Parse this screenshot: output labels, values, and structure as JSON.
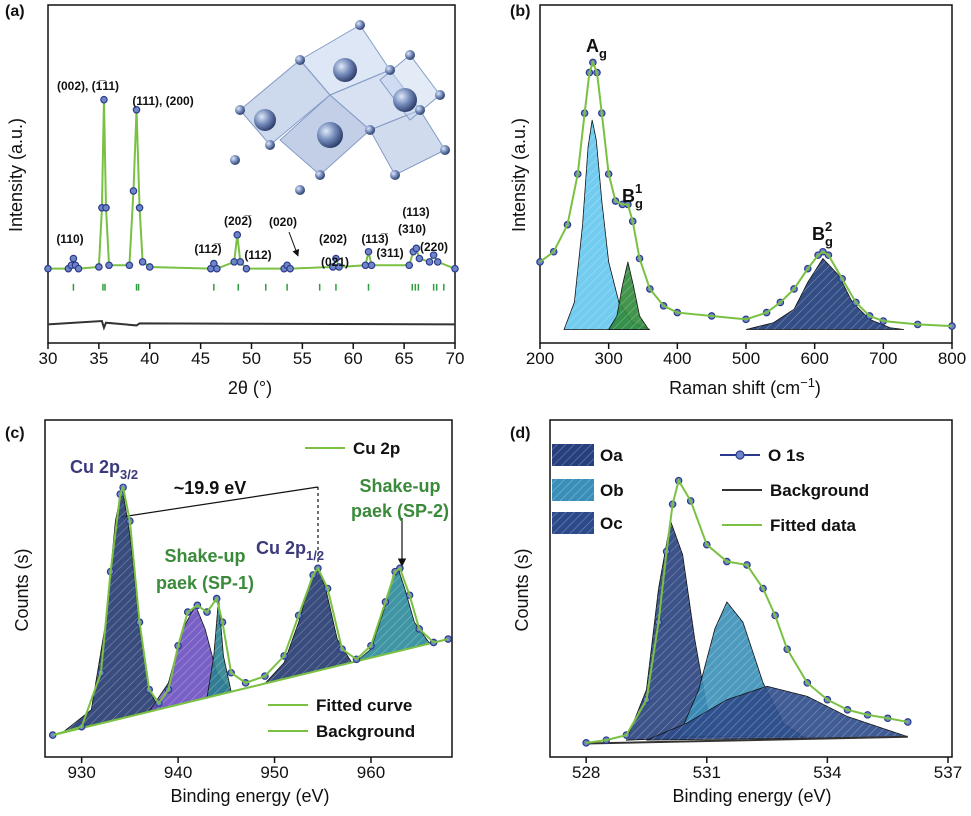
{
  "chart_data": [
    {
      "type": "line",
      "panel_label": "(a)",
      "x_label": "2θ (°)",
      "y_label": "Intensity (a.u.)",
      "xlim": [
        30,
        70
      ],
      "ylim": [
        0,
        100
      ],
      "xticks": [
        30,
        35,
        40,
        45,
        50,
        55,
        60,
        65,
        70
      ],
      "series": [
        {
          "color": "#7ac143",
          "style": "line",
          "x": [
            30,
            32,
            32.3,
            32.5,
            32.7,
            33,
            35,
            35.3,
            35.5,
            35.7,
            36,
            38,
            38.4,
            38.7,
            39,
            39.3,
            40,
            46,
            46.3,
            46.6,
            48.3,
            48.6,
            48.9,
            49.5,
            53.2,
            53.5,
            53.8,
            58,
            58.3,
            58.6,
            61.2,
            61.5,
            61.8,
            65.5,
            65.9,
            66.2,
            66.5,
            67.5,
            67.9,
            68.3,
            70
          ],
          "values": [
            22,
            22,
            23,
            25,
            23,
            22,
            22.5,
            40,
            72,
            40,
            23,
            23,
            45,
            69,
            40,
            24,
            22.5,
            22,
            23.5,
            22,
            24,
            32,
            24,
            22,
            22,
            23,
            22,
            22.5,
            25,
            22.5,
            23,
            27,
            23,
            23,
            27,
            28,
            25,
            24,
            26,
            24,
            22
          ]
        },
        {
          "color": "#2b3a8c",
          "style": "dots",
          "x": [
            30,
            32,
            32.3,
            32.5,
            32.7,
            33,
            35,
            35.3,
            35.5,
            35.7,
            36,
            38,
            38.4,
            38.7,
            39,
            39.3,
            40,
            46,
            46.3,
            46.6,
            48.3,
            48.6,
            48.9,
            49.5,
            53.2,
            53.5,
            53.8,
            58,
            58.3,
            58.6,
            61.2,
            61.5,
            61.8,
            65.5,
            65.9,
            66.2,
            66.5,
            67.5,
            67.9,
            68.3,
            70
          ],
          "values": [
            22,
            22,
            23,
            25,
            23,
            22,
            22.5,
            40,
            72,
            40,
            23,
            23,
            45,
            69,
            40,
            24,
            22.5,
            22,
            23.5,
            22,
            24,
            32,
            24,
            22,
            22,
            23,
            22,
            22.5,
            25,
            22.5,
            23,
            27,
            23,
            23,
            27,
            28,
            25,
            24,
            26,
            24,
            22
          ]
        },
        {
          "color": "#333333",
          "style": "line",
          "x": [
            30,
            35.3,
            35.5,
            35.7,
            38.7,
            39,
            70
          ],
          "values": [
            5.5,
            6.5,
            4.5,
            6,
            5.2,
            5.8,
            5.5
          ]
        }
      ],
      "reflections": {
        "color": "#2e9e3e",
        "x": [
          32.5,
          35.4,
          35.6,
          38.7,
          38.9,
          46.3,
          48.7,
          51.4,
          53.5,
          56.7,
          58.3,
          61.5,
          65.8,
          66.1,
          66.4,
          67.9,
          68.2,
          68.9
        ]
      },
      "annotations": [
        "(110)",
        "(002), (1̅11)",
        "(111), (200)",
        "(112̅)",
        "(202̅)",
        "(020)",
        "(112)",
        "(021)",
        "(202)",
        "(113̅)",
        "(311)",
        "(310)",
        "(113)",
        "(220)"
      ]
    },
    {
      "type": "area",
      "panel_label": "(b)",
      "x_label": {
        "text": "Raman shift (cm",
        "sup": "−1",
        "tail": ")"
      },
      "y_label": "Intensity (a.u.)",
      "xlim": [
        200,
        800
      ],
      "ylim": [
        0,
        100
      ],
      "xticks": [
        200,
        300,
        400,
        500,
        600,
        700,
        800
      ],
      "series": [
        {
          "color": "#62c6ee",
          "style": "fill",
          "x": [
            235,
            250,
            262,
            270,
            276,
            282,
            290,
            300,
            315,
            335,
            360
          ],
          "values": [
            4,
            12,
            35,
            58,
            66,
            60,
            42,
            24,
            12,
            6,
            4
          ]
        },
        {
          "color": "#2f8a3a",
          "style": "fill",
          "x": [
            300,
            312,
            320,
            328,
            336,
            345,
            358
          ],
          "values": [
            4,
            8,
            17,
            24,
            17,
            8,
            4
          ]
        },
        {
          "color": "#1d3a78",
          "style": "fill",
          "x": [
            500,
            540,
            570,
            590,
            612,
            635,
            655,
            680,
            710,
            730
          ],
          "values": [
            4,
            6,
            10,
            18,
            25,
            20,
            12,
            7,
            4.5,
            4
          ]
        },
        {
          "color": "#2b3a8c",
          "style": "dots",
          "x": [
            200,
            220,
            240,
            255,
            265,
            272,
            277,
            283,
            290,
            300,
            310,
            320,
            328,
            335,
            345,
            360,
            380,
            400,
            450,
            500,
            530,
            550,
            570,
            590,
            605,
            612,
            620,
            640,
            660,
            680,
            700,
            750,
            800
          ],
          "values": [
            24,
            27,
            35,
            50,
            68,
            80,
            83,
            80,
            68,
            50,
            42,
            41,
            41,
            36,
            25,
            16,
            11,
            9,
            8,
            7,
            9,
            12,
            16,
            22,
            26,
            27,
            26,
            19,
            12,
            8,
            6.5,
            5.5,
            5
          ]
        },
        {
          "color": "#7ac143",
          "style": "line",
          "x": [
            200,
            220,
            240,
            255,
            265,
            272,
            277,
            283,
            290,
            300,
            310,
            320,
            328,
            335,
            345,
            360,
            380,
            400,
            450,
            500,
            530,
            550,
            570,
            590,
            605,
            612,
            620,
            640,
            660,
            680,
            700,
            750,
            800
          ],
          "values": [
            24,
            27,
            35,
            50,
            68,
            80,
            83,
            80,
            68,
            50,
            42,
            41,
            41,
            36,
            25,
            16,
            11,
            9,
            8,
            7,
            9,
            12,
            16,
            22,
            26,
            27,
            26,
            19,
            12,
            8,
            6.5,
            5.5,
            5
          ]
        }
      ],
      "annotations": [
        {
          "text": "A",
          "sub": "g"
        },
        {
          "text": "B",
          "sub": "g",
          "sup": "1"
        },
        {
          "text": "B",
          "sub": "g",
          "sup": "2"
        }
      ]
    },
    {
      "type": "area",
      "panel_label": "(c)",
      "x_label": "Binding energy (eV)",
      "y_label": "Counts (s)",
      "xlim": [
        926.2,
        968.4
      ],
      "ylim": [
        0,
        100
      ],
      "xticks": [
        930,
        940,
        950,
        960
      ],
      "series": [
        {
          "color": "#22386f",
          "style": "fill",
          "x": [
            928,
            931,
            932.5,
            933.5,
            934.2,
            935,
            936,
            937,
            938
          ],
          "values": [
            7.2,
            14,
            40,
            70,
            80,
            66,
            38,
            20,
            14.4
          ]
        },
        {
          "color": "#6a4fc0",
          "style": "fill",
          "x": [
            937,
            939,
            940.5,
            941.8,
            942.8,
            944,
            945.5
          ],
          "values": [
            13.5,
            22,
            38,
            45,
            38,
            25,
            19.4
          ]
        },
        {
          "color": "#2a7f8f",
          "style": "fill",
          "x": [
            943,
            943.7,
            944.2,
            944.7,
            945.5
          ],
          "values": [
            17.6,
            30,
            47,
            30,
            19.4
          ]
        },
        {
          "color": "#22386f",
          "style": "fill",
          "x": [
            949,
            951,
            952.5,
            953.8,
            954.5,
            955.3,
            956.5,
            958,
            959
          ],
          "values": [
            21.8,
            28,
            40,
            53,
            56,
            50,
            35,
            28,
            28.7
          ]
        },
        {
          "color": "#2a8a9a",
          "style": "fill",
          "x": [
            958.5,
            960,
            961.5,
            962.3,
            962.8,
            963.5,
            964.5,
            966,
            967
          ],
          "values": [
            28.4,
            32,
            45,
            54,
            56,
            50,
            40,
            34,
            34.3
          ]
        },
        {
          "name": "Background",
          "color": "#7ac143",
          "style": "line",
          "x": [
            927,
            968
          ],
          "values": [
            6.5,
            35
          ]
        },
        {
          "name": "Cu 2p",
          "color": "#7ac143",
          "style": "dots",
          "x": [
            927,
            930,
            932,
            933,
            934,
            934.3,
            935,
            936,
            937,
            938,
            939,
            940,
            941,
            942,
            943,
            944,
            944.6,
            945.5,
            947,
            949,
            951,
            952.5,
            954,
            954.5,
            955.5,
            957,
            958.5,
            960,
            961.5,
            962.5,
            963,
            964,
            965,
            966.5,
            968
          ],
          "values": [
            6.5,
            9,
            25,
            55,
            78,
            80,
            70,
            40,
            20,
            16,
            20,
            33,
            43,
            45,
            43,
            47,
            40,
            25,
            22,
            24,
            30,
            42,
            54,
            56,
            50,
            32,
            29,
            33,
            46,
            55,
            56,
            48,
            38,
            34,
            35
          ]
        },
        {
          "name": "Fitted curve",
          "color": "#7ac143",
          "style": "line",
          "x": [
            927,
            930,
            932,
            933,
            934,
            934.3,
            935,
            936,
            937,
            938,
            939,
            940,
            941,
            942,
            943,
            944,
            944.6,
            945.5,
            947,
            949,
            951,
            952.5,
            954,
            954.5,
            955.5,
            957,
            958.5,
            960,
            961.5,
            962.5,
            963,
            964,
            965,
            966.5,
            968
          ],
          "values": [
            6.5,
            9,
            25,
            55,
            78,
            80,
            70,
            40,
            20,
            16,
            20,
            33,
            43,
            45,
            43,
            47,
            40,
            25,
            22,
            24,
            30,
            42,
            54,
            56,
            50,
            32,
            29,
            33,
            46,
            55,
            56,
            48,
            38,
            34,
            35
          ]
        }
      ],
      "annotations": [
        {
          "text": "Cu 2p",
          "sub": "3/2"
        },
        "~19.9 eV",
        "Shake-up",
        "paek (SP-1)",
        {
          "text": "Cu 2p",
          "sub": "1/2"
        },
        "Shake-up",
        "paek (SP-2)"
      ]
    },
    {
      "type": "area",
      "panel_label": "(d)",
      "x_label": "Binding energy (eV)",
      "y_label": "Counts (s)",
      "xlim": [
        527.1,
        537.1
      ],
      "ylim": [
        0,
        100
      ],
      "xticks": [
        528,
        531,
        534,
        537
      ],
      "series": [
        {
          "name": "Oa",
          "color": "#27407d",
          "style": "fill",
          "x": [
            529,
            529.5,
            529.8,
            530.1,
            530.4,
            530.7,
            531,
            531.3
          ],
          "values": [
            5,
            20,
            50,
            70,
            60,
            35,
            15,
            6
          ]
        },
        {
          "name": "Ob",
          "color": "#3a8fb8",
          "style": "fill",
          "x": [
            530.3,
            530.8,
            531.2,
            531.5,
            531.9,
            532.4,
            532.9,
            533.4
          ],
          "values": [
            6,
            20,
            38,
            46,
            40,
            22,
            10,
            6
          ]
        },
        {
          "name": "Oc",
          "color": "#2c4a8a",
          "style": "fill",
          "x": [
            529.5,
            530.5,
            531.5,
            532.5,
            533.5,
            534.5,
            535.5,
            536
          ],
          "values": [
            5,
            10,
            17,
            21,
            18,
            12,
            8,
            6
          ]
        },
        {
          "name": "Background",
          "color": "#333333",
          "style": "line",
          "x": [
            528,
            536
          ],
          "values": [
            4,
            6
          ]
        },
        {
          "name": "O 1s",
          "color": "#2b3a8c",
          "style": "dots",
          "x": [
            528,
            528.5,
            529,
            529.5,
            529.8,
            530,
            530.15,
            530.3,
            530.6,
            531,
            531.5,
            532,
            532.4,
            532.7,
            533,
            533.5,
            534,
            534.5,
            535,
            535.5,
            536
          ],
          "values": [
            4.2,
            5,
            6.5,
            17,
            40,
            61,
            75,
            82,
            76,
            63,
            58,
            57,
            50,
            42,
            32,
            22,
            17,
            14,
            12.5,
            11.5,
            10.4
          ]
        },
        {
          "name": "Fitted data",
          "color": "#7ac143",
          "style": "line",
          "x": [
            528,
            528.5,
            529,
            529.5,
            529.8,
            530,
            530.15,
            530.3,
            530.6,
            531,
            531.5,
            532,
            532.4,
            532.7,
            533,
            533.5,
            534,
            534.5,
            535,
            535.5,
            536
          ],
          "values": [
            4.2,
            5,
            6.5,
            17,
            40,
            61,
            75,
            82,
            76,
            63,
            58,
            57,
            50,
            42,
            32,
            22,
            17,
            14,
            12.5,
            11.5,
            10.4
          ]
        }
      ]
    }
  ]
}
